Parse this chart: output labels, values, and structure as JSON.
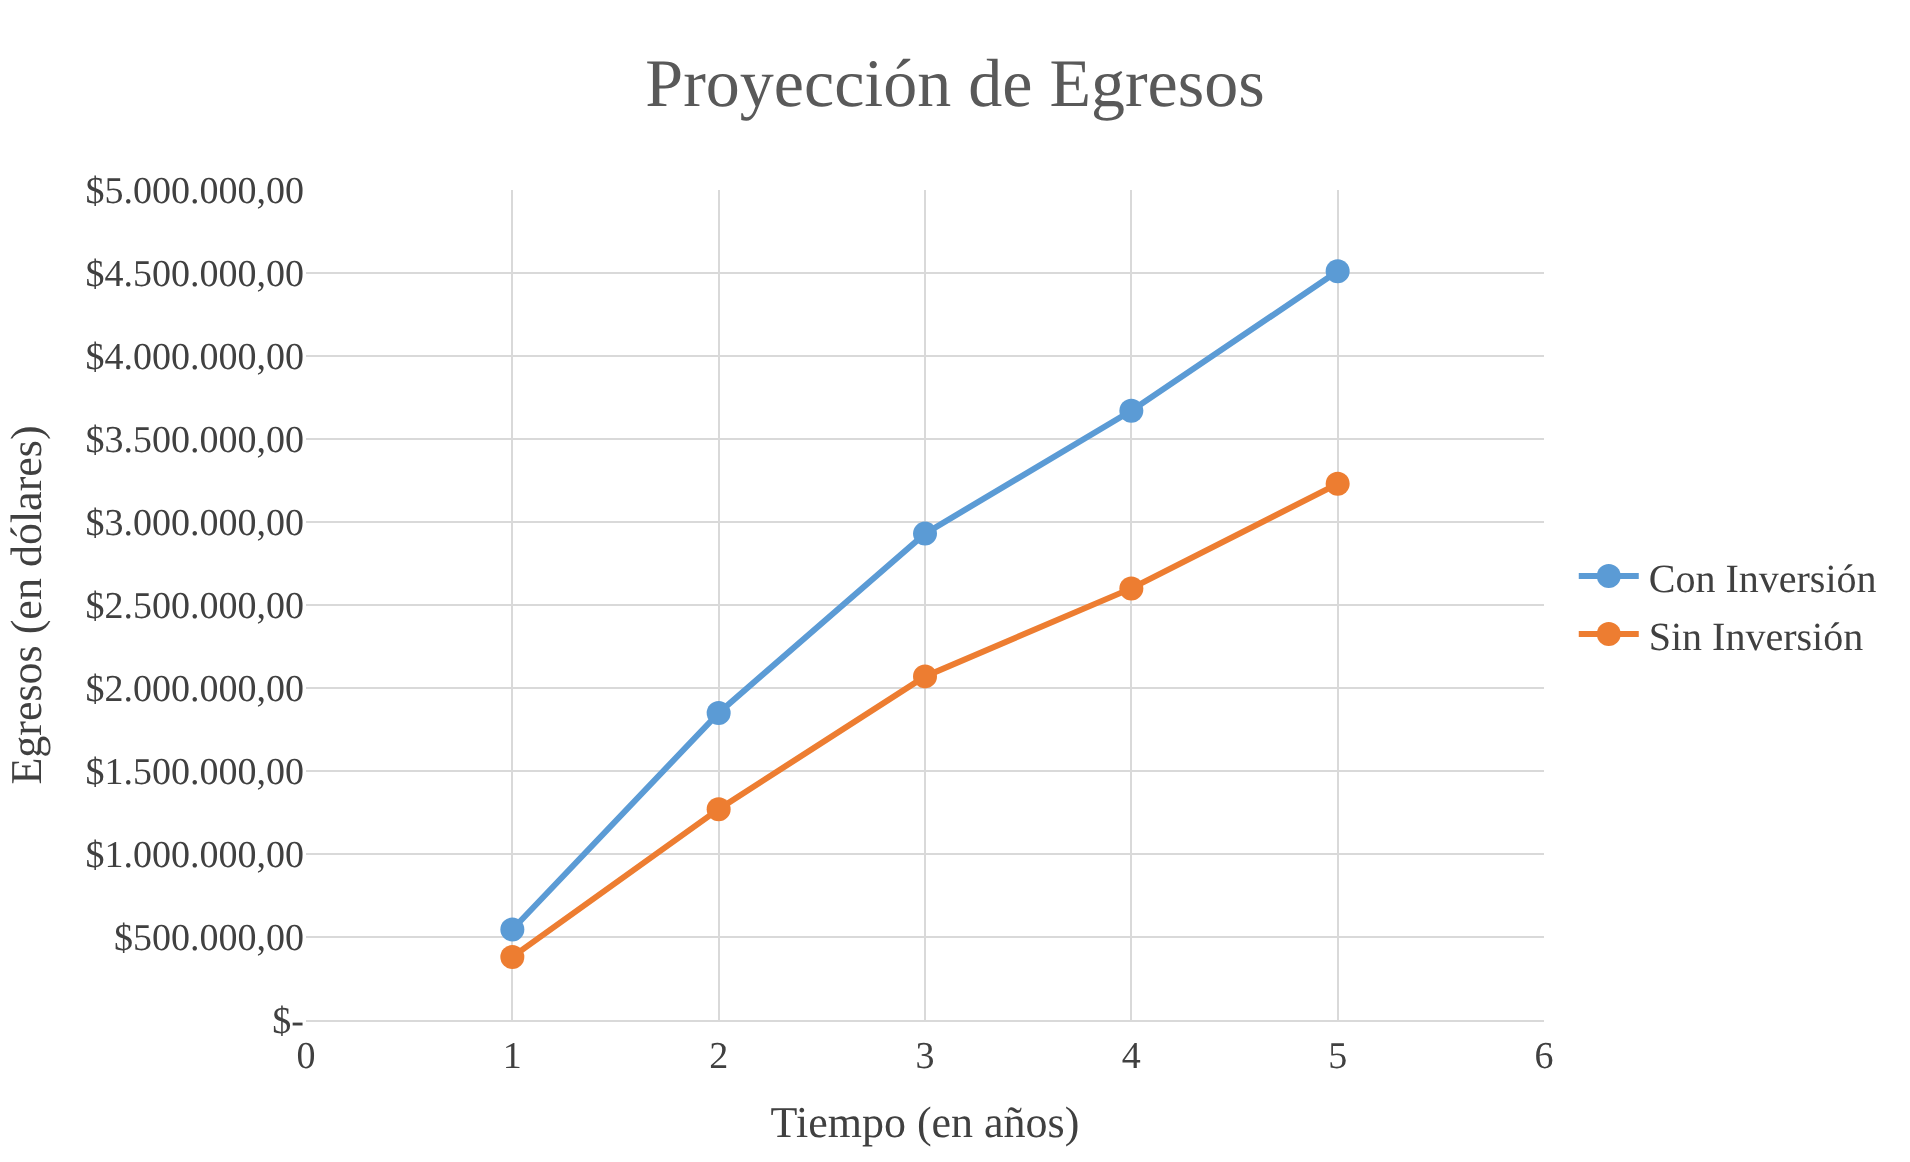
{
  "chart_data": {
    "type": "line",
    "title": "Proyección de Egresos",
    "xlabel": "Tiempo (en años)",
    "ylabel": "Egresos (en dólares)",
    "x": [
      1,
      2,
      3,
      4,
      5
    ],
    "series": [
      {
        "name": "Con Inversión",
        "color": "#5b9bd5",
        "values": [
          545000,
          1850000,
          2930000,
          3670000,
          4510000
        ]
      },
      {
        "name": "Sin Inversión",
        "color": "#ed7d31",
        "values": [
          380000,
          1270000,
          2070000,
          2600000,
          3230000
        ]
      }
    ],
    "xlim": [
      0,
      6
    ],
    "xticks": [
      0,
      1,
      2,
      3,
      4,
      5,
      6
    ],
    "ylim": [
      0,
      5000000
    ],
    "yticks": [
      {
        "value": 0,
        "label": "$-"
      },
      {
        "value": 500000,
        "label": "$500.000,00"
      },
      {
        "value": 1000000,
        "label": "$1.000.000,00"
      },
      {
        "value": 1500000,
        "label": "$1.500.000,00"
      },
      {
        "value": 2000000,
        "label": "$2.000.000,00"
      },
      {
        "value": 2500000,
        "label": "$2.500.000,00"
      },
      {
        "value": 3000000,
        "label": "$3.000.000,00"
      },
      {
        "value": 3500000,
        "label": "$3.500.000,00"
      },
      {
        "value": 4000000,
        "label": "$4.000.000,00"
      },
      {
        "value": 4500000,
        "label": "$4.500.000,00"
      },
      {
        "value": 5000000,
        "label": "$5.000.000,00"
      }
    ],
    "grid": true,
    "legend": "right",
    "marker": "circle",
    "line_style": "solid"
  }
}
